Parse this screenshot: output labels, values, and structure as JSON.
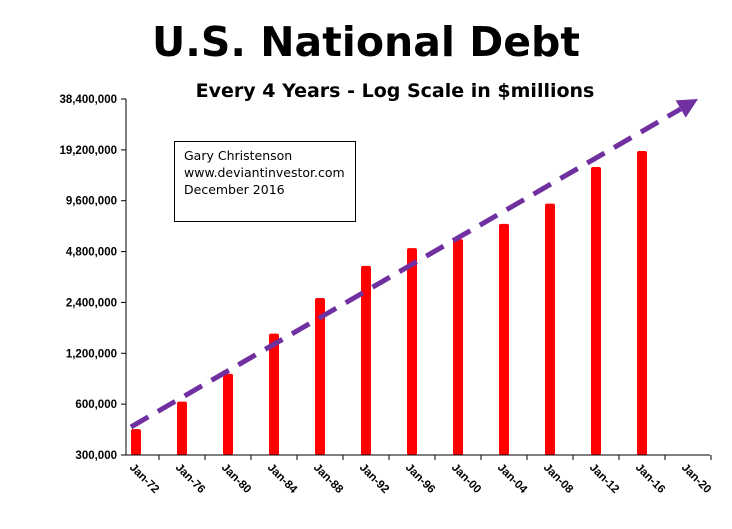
{
  "chart_data": {
    "type": "bar",
    "title": "U.S. National Debt",
    "subtitle": "Every 4 Years - Log Scale in $millions",
    "xlabel": "",
    "ylabel": "",
    "yscale": "log",
    "ylim": [
      300000,
      38400000
    ],
    "yticks": [
      "38,400,000",
      "19,200,000",
      "9,600,000",
      "4,800,000",
      "2,400,000",
      "1,200,000",
      "600,000",
      "300,000"
    ],
    "ytick_values": [
      38400000,
      19200000,
      9600000,
      4800000,
      2400000,
      1200000,
      600000,
      300000
    ],
    "categories": [
      "Jan-72",
      "Jan-76",
      "Jan-80",
      "Jan-84",
      "Jan-88",
      "Jan-92",
      "Jan-96",
      "Jan-00",
      "Jan-04",
      "Jan-08",
      "Jan-12",
      "Jan-16",
      "Jan-20"
    ],
    "values": [
      427000,
      621000,
      908000,
      1570000,
      2550000,
      3950000,
      5030000,
      5690000,
      7000000,
      9230000,
      15200000,
      18900000,
      null
    ],
    "bar_color": "#ff0000",
    "trend_line": {
      "style": "dashed-arrow",
      "color": "#7030a0",
      "start": {
        "x": "Jan-72",
        "y": 440000
      },
      "end": {
        "x": "Jan-20",
        "y": 38400000
      }
    },
    "grid": false,
    "legend": "none",
    "annotation": [
      "Gary Christenson",
      "www.deviantinvestor.com",
      "December 2016"
    ]
  }
}
